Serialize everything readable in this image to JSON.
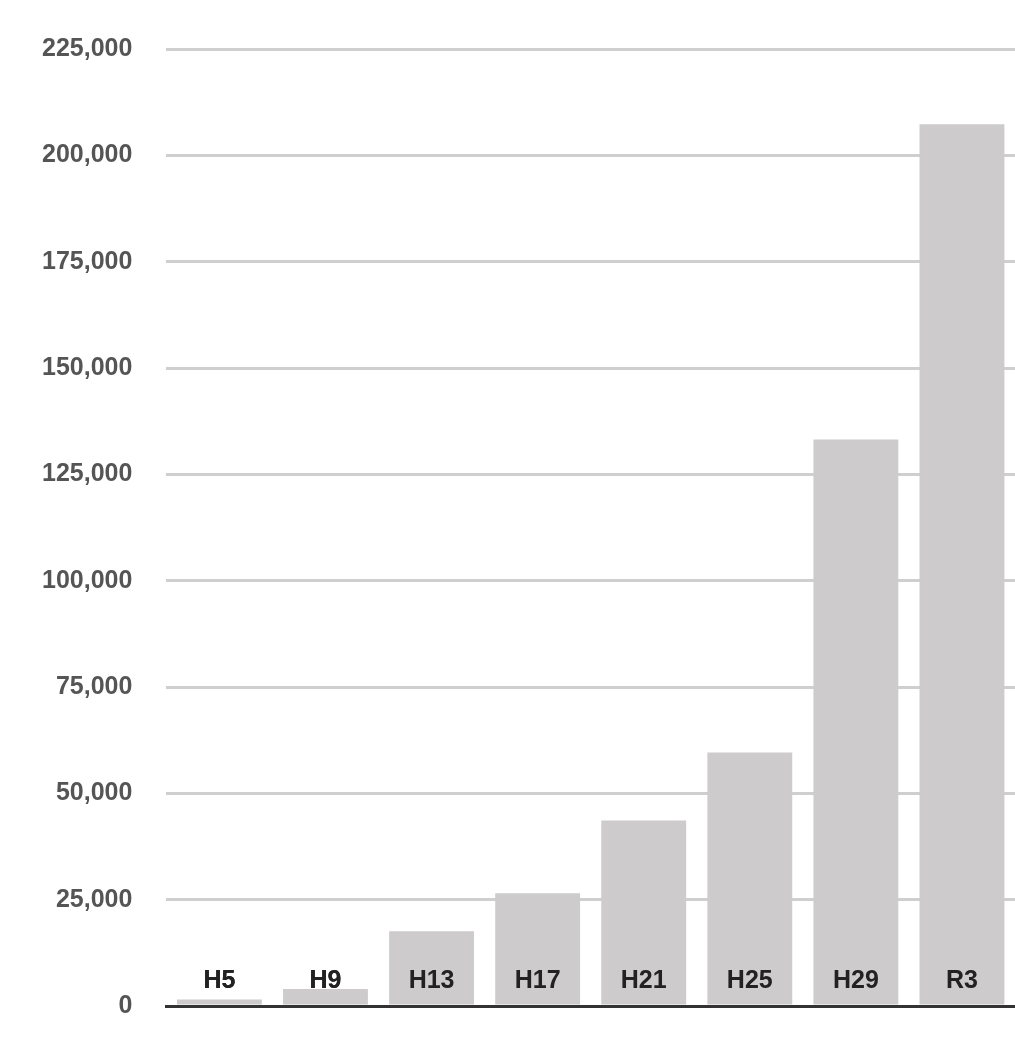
{
  "chart_data": {
    "type": "bar",
    "categories": [
      "H5",
      "H9",
      "H13",
      "H17",
      "H21",
      "H25",
      "H29",
      "R3"
    ],
    "values": [
      1500,
      4000,
      17600,
      26500,
      43600,
      59600,
      133200,
      207300
    ],
    "color": "#cdcbcc",
    "ylim": [
      0,
      225000
    ],
    "yticks": [
      {
        "value": 0,
        "label": "0"
      },
      {
        "value": 25000,
        "label": "25,000"
      },
      {
        "value": 50000,
        "label": "50,000"
      },
      {
        "value": 75000,
        "label": "75,000"
      },
      {
        "value": 100000,
        "label": "100,000"
      },
      {
        "value": 125000,
        "label": "125,000"
      },
      {
        "value": 150000,
        "label": "150,000"
      },
      {
        "value": 175000,
        "label": "175,000"
      },
      {
        "value": 200000,
        "label": "200,000"
      },
      {
        "value": 225000,
        "label": "225,000"
      }
    ],
    "grid": "y",
    "legend": false
  }
}
